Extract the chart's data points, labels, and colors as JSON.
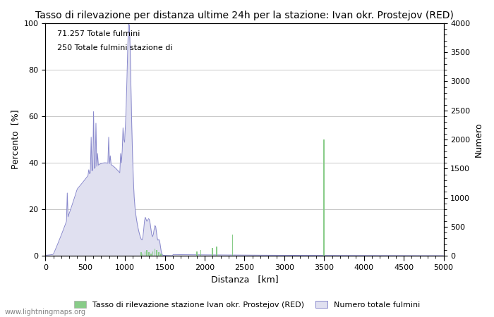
{
  "title": "Tasso di rilevazione per distanza ultime 24h per la stazione: Ivan okr. Prostejov (RED)",
  "xlabel": "Distanza   [km]",
  "ylabel_left": "Percento  [%]",
  "ylabel_right": "Numero",
  "annotation_line1": "71.257 Totale fulmini",
  "annotation_line2": "250 Totale fulmini stazione di",
  "xlim": [
    0,
    5000
  ],
  "ylim_left": [
    0,
    100
  ],
  "ylim_right": [
    0,
    4000
  ],
  "xticks": [
    0,
    500,
    1000,
    1500,
    2000,
    2500,
    3000,
    3500,
    4000,
    4500,
    5000
  ],
  "yticks_left": [
    0,
    20,
    40,
    60,
    80,
    100
  ],
  "yticks_right": [
    0,
    500,
    1000,
    1500,
    2000,
    2500,
    3000,
    3500,
    4000
  ],
  "legend_label_green": "Tasso di rilevazione stazione Ivan okr. Prostejov (RED)",
  "legend_label_blue": "Numero totale fulmini",
  "watermark": "www.lightningmaps.org",
  "bg_color": "#ffffff",
  "plot_bg_color": "#ffffff",
  "grid_color": "#c8c8c8",
  "blue_line_color": "#8888cc",
  "blue_fill_color": "#e0e0f0",
  "green_bar_color": "#88cc88",
  "title_fontsize": 10,
  "axis_label_fontsize": 9,
  "tick_fontsize": 8,
  "annotation_fontsize": 8
}
